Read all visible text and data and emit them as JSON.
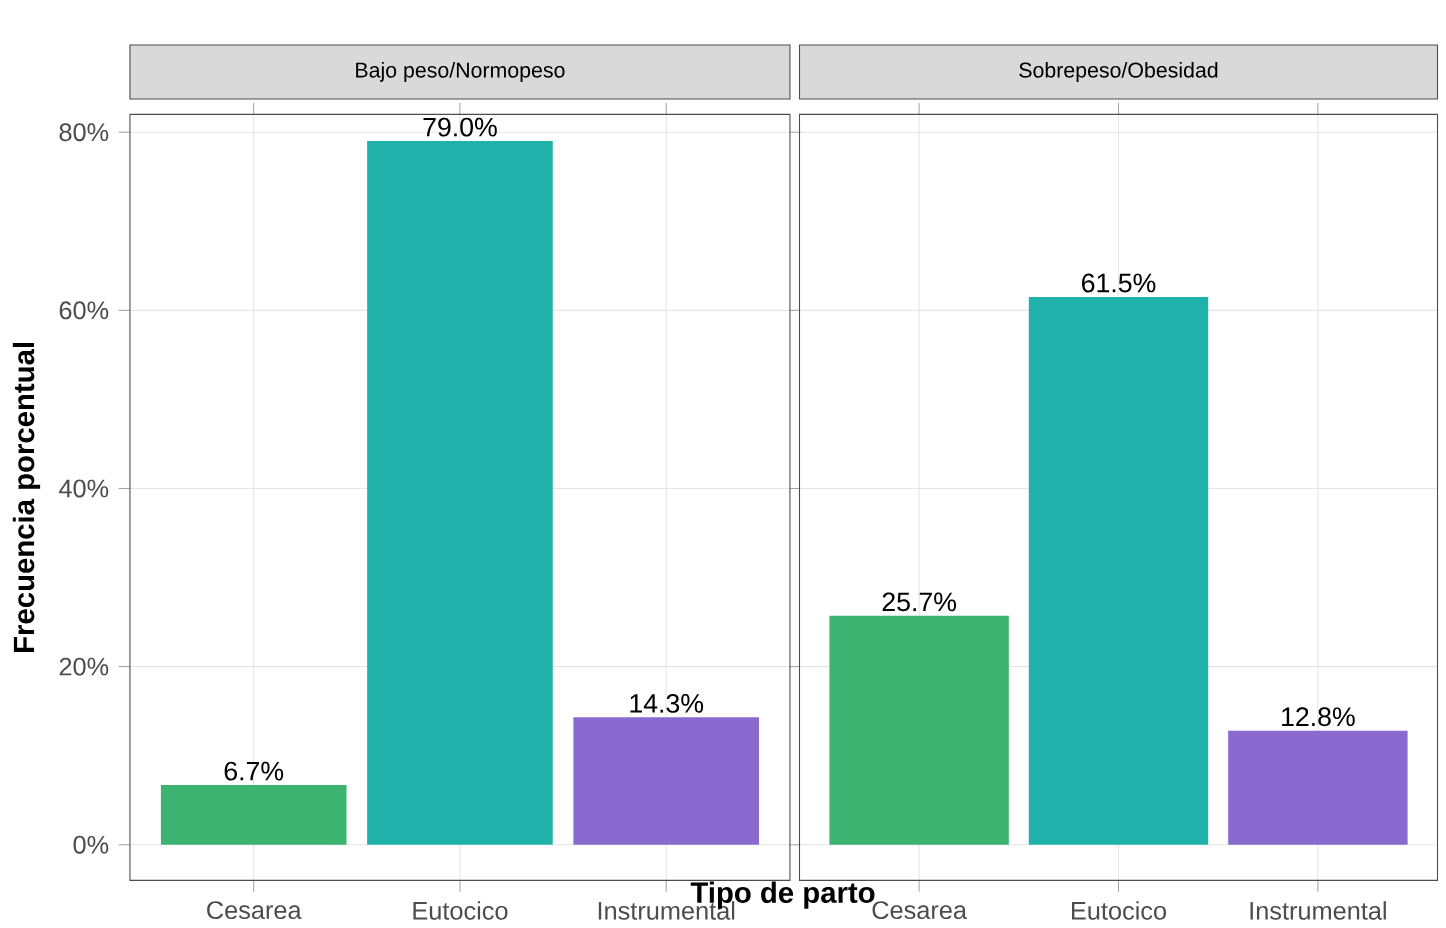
{
  "chart_data": [
    {
      "type": "bar",
      "title": "Bajo peso/Normopeso",
      "xlabel": "Tipo de parto",
      "ylabel": "Frecuencia porcentual",
      "categories": [
        "Cesarea",
        "Eutocico",
        "Instrumental"
      ],
      "values": [
        6.7,
        79.0,
        14.3
      ],
      "value_labels": [
        "6.7%",
        "79.0%",
        "14.3%"
      ],
      "colors": [
        "#3cb371",
        "#20b2aa",
        "#8a6acf"
      ],
      "ylim": [
        -4,
        82
      ],
      "yticks": [
        {
          "value": 0,
          "label": "0%"
        },
        {
          "value": 20,
          "label": "20%"
        },
        {
          "value": 40,
          "label": "40%"
        },
        {
          "value": 60,
          "label": "60%"
        },
        {
          "value": 80,
          "label": "80%"
        }
      ],
      "grid": true
    },
    {
      "type": "bar",
      "title": "Sobrepeso/Obesidad",
      "categories": [
        "Cesarea",
        "Eutocico",
        "Instrumental"
      ],
      "values": [
        25.7,
        61.5,
        12.8
      ],
      "value_labels": [
        "25.7%",
        "61.5%",
        "12.8%"
      ],
      "colors": [
        "#3cb371",
        "#20b2aa",
        "#8a6acf"
      ],
      "ylim": [
        -4,
        82
      ],
      "yticks": [
        {
          "value": 0,
          "label": null
        },
        {
          "value": 20,
          "label": null
        },
        {
          "value": 40,
          "label": null
        },
        {
          "value": 60,
          "label": null
        },
        {
          "value": 80,
          "label": null
        }
      ],
      "grid": true,
      "tick_labels": "x"
    }
  ]
}
